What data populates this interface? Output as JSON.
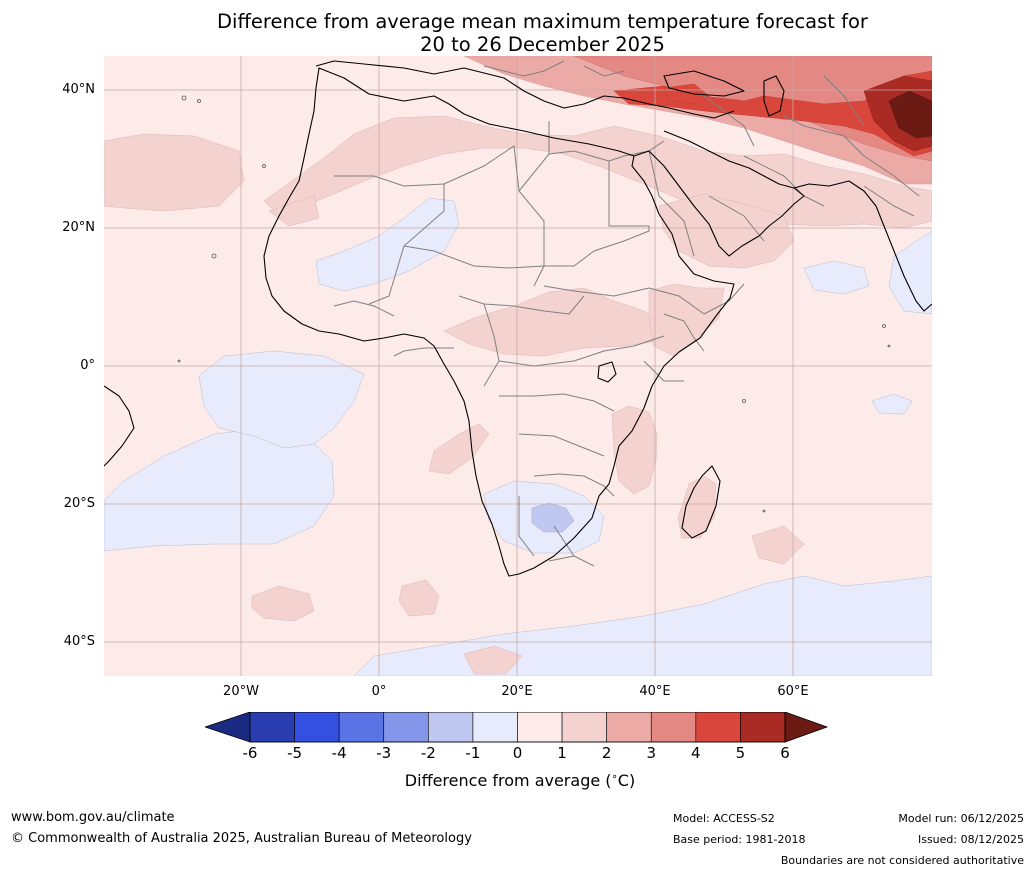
{
  "title": {
    "line1": "Difference from average mean maximum temperature forecast for",
    "line2": "20 to 26 December 2025"
  },
  "map": {
    "lat_labels": [
      "40°N",
      "20°N",
      "0°",
      "20°S",
      "40°S"
    ],
    "lon_labels": [
      "20°W",
      "0°",
      "20°E",
      "40°E",
      "60°E"
    ],
    "colors": {
      "background_0_1": "#fcebe9",
      "warm_1_2": "#f3d2cf",
      "warm_2_3": "#ebaaa6",
      "warm_3_4": "#e48883",
      "warm_4_5": "#d9473c",
      "warm_5_6": "#a92b24",
      "warm_gt6": "#6b1a14",
      "cool_0_m1": "#e7ebfb",
      "cool_m1_m2": "#c0c8f1",
      "coast": "#000000",
      "border": "#808080",
      "grid": "#c8a8a8"
    }
  },
  "colorbar": {
    "ticks": [
      "-6",
      "-5",
      "-4",
      "-3",
      "-2",
      "-1",
      "0",
      "1",
      "2",
      "3",
      "4",
      "5",
      "6"
    ],
    "colors": [
      "#1b2b83",
      "#2a3db0",
      "#3350e0",
      "#5a74e5",
      "#8396ea",
      "#c0c8f1",
      "#e7ebfb",
      "#fcebe9",
      "#f3d2cf",
      "#ebaaa6",
      "#e48883",
      "#d9473c",
      "#a92b24",
      "#6b1a14"
    ],
    "label": "Difference from average (",
    "label_unit": "C)"
  },
  "footer": {
    "website": "www.bom.gov.au/climate",
    "copyright": "© Commonwealth of Australia 2025, Australian Bureau of Meteorology",
    "model": "Model: ACCESS-S2",
    "base_period": "Base period: 1981-2018",
    "model_run": "Model run: 06/12/2025",
    "issued": "Issued: 08/12/2025",
    "disclaimer": "Boundaries are not considered authoritative"
  }
}
